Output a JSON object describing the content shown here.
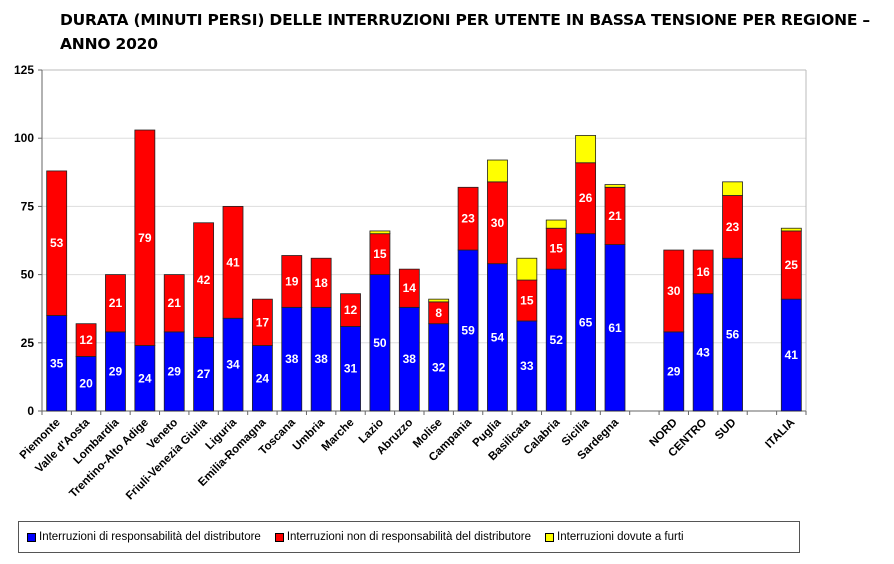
{
  "chart_data": {
    "type": "bar",
    "stacked": true,
    "title": "DURATA (MINUTI PERSI) DELLE INTERRUZIONI PER UTENTE IN BASSA TENSIONE PER REGIONE – ANNO 2020",
    "xlabel": "",
    "ylabel": "",
    "ylim": [
      0,
      125
    ],
    "yticks": [
      0,
      25,
      50,
      75,
      100,
      125
    ],
    "grid": true,
    "legend_position": "bottom",
    "categories": [
      "Piemonte",
      "Valle d'Aosta",
      "Lombardia",
      "Trentino-Alto Adige",
      "Veneto",
      "Friuli-Venezia Giulia",
      "Liguria",
      "Emilia-Romagna",
      "Toscana",
      "Umbria",
      "Marche",
      "Lazio",
      "Abruzzo",
      "Molise",
      "Campania",
      "Puglia",
      "Basilicata",
      "Calabria",
      "Sicilia",
      "Sardegna",
      "",
      "NORD",
      "CENTRO",
      "SUD",
      "",
      "ITALIA"
    ],
    "series": [
      {
        "name": "Interruzioni di responsabilità del distributore",
        "color": "#0000ff",
        "label_color": "#ffffff",
        "values": [
          35,
          20,
          29,
          24,
          29,
          27,
          34,
          24,
          38,
          38,
          31,
          50,
          38,
          32,
          59,
          54,
          33,
          52,
          65,
          61,
          null,
          29,
          43,
          56,
          null,
          41
        ],
        "show_labels": true
      },
      {
        "name": "Interruzioni non di responsabilità del distributore",
        "color": "#ff0000",
        "label_color": "#ffffff",
        "values": [
          53,
          12,
          21,
          79,
          21,
          42,
          41,
          17,
          19,
          18,
          12,
          15,
          14,
          8,
          23,
          30,
          15,
          15,
          26,
          21,
          null,
          30,
          16,
          23,
          null,
          25
        ],
        "show_labels": true
      },
      {
        "name": "Interruzioni dovute a furti",
        "color": "#ffff00",
        "values": [
          0,
          0,
          0,
          0,
          0,
          0,
          0,
          0,
          0,
          0,
          0,
          1,
          0,
          1,
          0,
          8,
          8,
          3,
          10,
          1,
          null,
          0,
          0,
          5,
          null,
          1
        ],
        "show_labels": false
      }
    ]
  }
}
